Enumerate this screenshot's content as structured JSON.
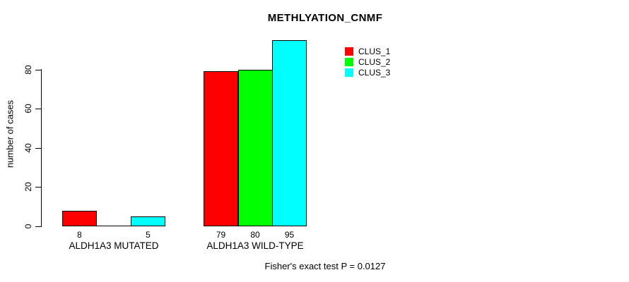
{
  "chart_data": {
    "type": "bar",
    "title": "METHLYATION_CNMF",
    "ylabel": "number of cases",
    "xlabel": "",
    "categories": [
      "ALDH1A3 MUTATED",
      "ALDH1A3 WILD-TYPE"
    ],
    "series": [
      {
        "name": "CLUS_1",
        "color": "#ff0000",
        "values": [
          8,
          79
        ]
      },
      {
        "name": "CLUS_2",
        "color": "#00ff00",
        "values": [
          0,
          80
        ]
      },
      {
        "name": "CLUS_3",
        "color": "#00ffff",
        "values": [
          5,
          95
        ]
      }
    ],
    "bar_value_labels": [
      [
        "8",
        "",
        "5"
      ],
      [
        "79",
        "80",
        "95"
      ]
    ],
    "yticks": [
      0,
      20,
      40,
      60,
      80
    ],
    "ylim": [
      0,
      80
    ],
    "grid": false,
    "legend_position": "top-right",
    "legend_entries": [
      "CLUS_1",
      "CLUS_2",
      "CLUS_3"
    ],
    "annotation": "Fisher's exact test P = 0.0127",
    "axis_color": "#000000",
    "bar_border_color": "#000000",
    "background_color": "#ffffff"
  }
}
